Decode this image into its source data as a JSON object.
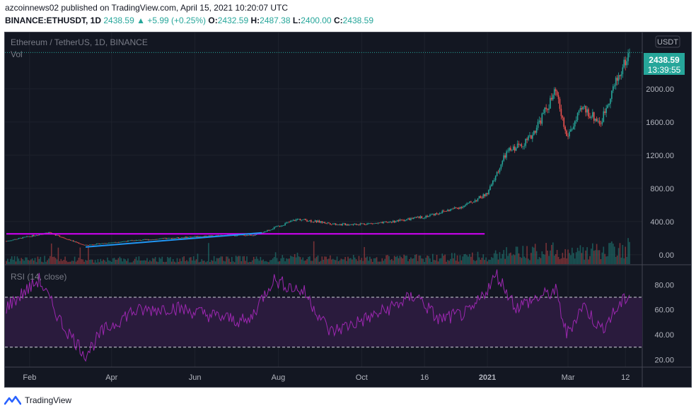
{
  "header": {
    "published": "azcoinnews02 published on TradingView.com, April 15, 2021 10:20:07 UTC",
    "symbol": "BINANCE:ETHUSDT, 1D",
    "last": "2438.59",
    "change": "+5.99 (+0.25%)",
    "o_label": "O:",
    "open": "2432.59",
    "h_label": "H:",
    "high": "2487.38",
    "l_label": "L:",
    "low": "2400.00",
    "c_label": "C:",
    "close": "2438.59"
  },
  "chart": {
    "legend_title": "Ethereum / TetherUS, 1D, BINANCE",
    "vol_label": "Vol",
    "currency_badge": "USDT",
    "price_label": "2438.59",
    "countdown_label": "13:39:55",
    "rsi_label": "RSI (14, close)"
  },
  "footer": {
    "brand": "TradingView"
  },
  "colors": {
    "up": "#26a69a",
    "down": "#ef5350",
    "background": "#131722",
    "rsi_line": "#9c27b0",
    "rsi_band": "#2a1b3d",
    "support_line": "#d500f9",
    "trend_line": "#2196f3",
    "badge": "#26a69a"
  },
  "chart_data": [
    {
      "type": "candlestick",
      "title": "Ethereum / TetherUS, 1D, BINANCE",
      "y_axis_ticks": [
        0,
        400,
        800,
        1200,
        1600,
        2000
      ],
      "x_axis_ticks": [
        "Feb",
        "Apr",
        "Jun",
        "Aug",
        "Oct",
        "16",
        "2021",
        "Mar",
        "12"
      ],
      "x_range": [
        "2020-01-15",
        "2021-04-15"
      ],
      "ylim": [
        -120,
        2680
      ],
      "close_series": [
        {
          "date": "2020-01-15",
          "close": 165
        },
        {
          "date": "2020-02-15",
          "close": 270
        },
        {
          "date": "2020-03-12",
          "close": 115
        },
        {
          "date": "2020-04-15",
          "close": 170
        },
        {
          "date": "2020-05-15",
          "close": 200
        },
        {
          "date": "2020-06-15",
          "close": 232
        },
        {
          "date": "2020-07-15",
          "close": 238
        },
        {
          "date": "2020-08-15",
          "close": 430
        },
        {
          "date": "2020-09-15",
          "close": 365
        },
        {
          "date": "2020-10-15",
          "close": 380
        },
        {
          "date": "2020-11-15",
          "close": 455
        },
        {
          "date": "2020-12-15",
          "close": 590
        },
        {
          "date": "2021-01-01",
          "close": 735
        },
        {
          "date": "2021-01-15",
          "close": 1230
        },
        {
          "date": "2021-02-01",
          "close": 1400
        },
        {
          "date": "2021-02-20",
          "close": 1960
        },
        {
          "date": "2021-02-28",
          "close": 1420
        },
        {
          "date": "2021-03-12",
          "close": 1770
        },
        {
          "date": "2021-03-25",
          "close": 1590
        },
        {
          "date": "2021-04-01",
          "close": 1930
        },
        {
          "date": "2021-04-15",
          "close": 2438.59
        }
      ],
      "last_price": 2438.59,
      "annotations": [
        {
          "name": "support",
          "from": "2020-01-15",
          "to": "2020-12-30",
          "value": 252
        },
        {
          "name": "trend",
          "from": "2020-03-13",
          "to": "2020-07-20",
          "values": [
            94,
            265
          ]
        }
      ]
    },
    {
      "type": "bar",
      "title": "Vol",
      "x_range": [
        "2020-01-15",
        "2021-04-15"
      ],
      "note": "volume histogram, no scale printed"
    },
    {
      "type": "line",
      "title": "RSI (14, close)",
      "y_axis_ticks": [
        20,
        40,
        60,
        80
      ],
      "ylim": [
        14,
        96
      ],
      "bands": [
        30,
        70
      ],
      "series": [
        {
          "date": "2020-01-15",
          "value": 62
        },
        {
          "date": "2020-02-08",
          "value": 84
        },
        {
          "date": "2020-02-25",
          "value": 48
        },
        {
          "date": "2020-03-13",
          "value": 24
        },
        {
          "date": "2020-03-25",
          "value": 42
        },
        {
          "date": "2020-04-15",
          "value": 58
        },
        {
          "date": "2020-05-15",
          "value": 62
        },
        {
          "date": "2020-06-15",
          "value": 55
        },
        {
          "date": "2020-07-10",
          "value": 50
        },
        {
          "date": "2020-07-28",
          "value": 84
        },
        {
          "date": "2020-08-20",
          "value": 74
        },
        {
          "date": "2020-09-08",
          "value": 42
        },
        {
          "date": "2020-10-10",
          "value": 55
        },
        {
          "date": "2020-11-10",
          "value": 72
        },
        {
          "date": "2020-11-26",
          "value": 52
        },
        {
          "date": "2020-12-20",
          "value": 58
        },
        {
          "date": "2021-01-08",
          "value": 88
        },
        {
          "date": "2021-01-22",
          "value": 62
        },
        {
          "date": "2021-02-08",
          "value": 70
        },
        {
          "date": "2021-02-20",
          "value": 75
        },
        {
          "date": "2021-02-28",
          "value": 40
        },
        {
          "date": "2021-03-12",
          "value": 64
        },
        {
          "date": "2021-03-25",
          "value": 44
        },
        {
          "date": "2021-04-15",
          "value": 73
        }
      ]
    }
  ]
}
